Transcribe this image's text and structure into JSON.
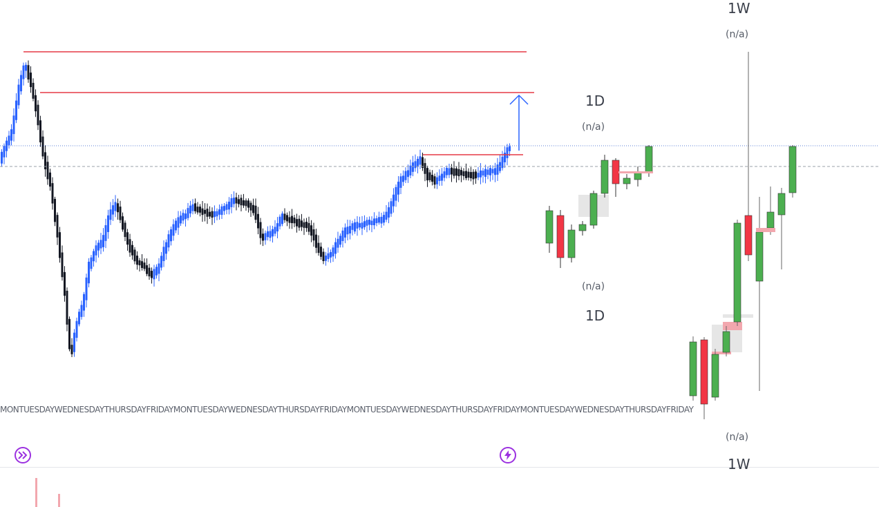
{
  "panels": {
    "daily_top": {
      "timeframe": "1D",
      "status": "(n/a)"
    },
    "daily_bottom": {
      "timeframe": "1D",
      "status": "(n/a)"
    },
    "weekly_top": {
      "timeframe": "1W",
      "status": "(n/a)"
    },
    "weekly_bottom": {
      "timeframe": "1W",
      "status": "(n/a)"
    }
  },
  "day_axis_labels": "MONTUESDAYWEDNESDAYTHURSDAYFRIDAYMONTUESDAYWEDNESDAYTHURSDAYFRIDAYMONTUESDAYWEDNESDAYTHURSDAYFRIDAYMONTUESDAYWEDNESDAYTHURSDAYFRIDAY",
  "buttons": {
    "replay_icon": "fast-forward-icon",
    "alert_icon": "lightning-icon"
  },
  "colors": {
    "bull_main": "#2962ff",
    "bear_main": "#131722",
    "bull_panel": "#4caf50",
    "bear_panel": "#f23645",
    "level_line": "#e53945",
    "accent": "#9b30e0"
  }
}
